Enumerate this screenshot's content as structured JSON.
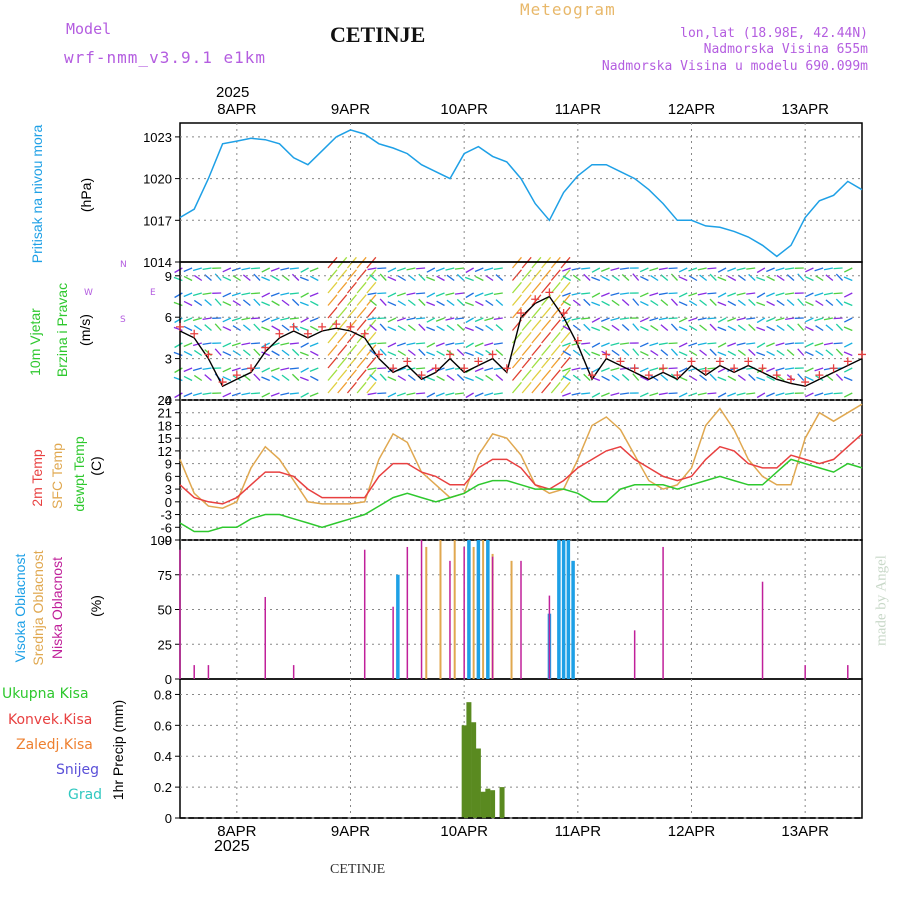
{
  "header": {
    "model_label": "Model",
    "model_name": "wrf-nmm_v3.9.1 e1km",
    "station": "CETINJE",
    "meteogram": "Meteogram",
    "lonlat": "lon,lat (18.98E, 42.44N)",
    "elevation": "Nadmorska Visina 655m",
    "model_elevation": "Nadmorska Visina u modelu 690.099m",
    "footer_station": "CETINJE",
    "watermark": "made by Angel",
    "year": "2025"
  },
  "dates": [
    "8APR",
    "9APR",
    "10APR",
    "11APR",
    "12APR",
    "13APR"
  ],
  "compass": {
    "w": "W",
    "e": "E",
    "n": "N",
    "s": "S"
  },
  "panels": {
    "pressure": {
      "label": "Pritisak na nivou mora",
      "unit": "(hPa)",
      "yticks": [
        "1014",
        "1017",
        "1020",
        "1023"
      ]
    },
    "wind": {
      "label1": "10m Vjetar",
      "label2": "Brzina i Pravac",
      "unit": "(m/s)",
      "yticks": [
        "0",
        "3",
        "6",
        "9"
      ]
    },
    "temp": {
      "label1": "2m Temp",
      "label2": "SFC Temp",
      "label3": "dewpt Temp",
      "unit": "(C)",
      "yticks": [
        "-9",
        "-6",
        "-3",
        "0",
        "3",
        "6",
        "9",
        "12",
        "15",
        "18",
        "21",
        "24"
      ]
    },
    "cloud": {
      "label1": "Visoka Oblacnost",
      "label2": "Srednja Oblacnost",
      "label3": "Niska Oblacnost",
      "unit": "(%)",
      "yticks": [
        "0",
        "25",
        "50",
        "75",
        "100"
      ]
    },
    "precip": {
      "unit": "1hr Precip (mm)",
      "yticks": [
        "0",
        "0.2",
        "0.4",
        "0.6",
        "0.8"
      ],
      "legend": [
        "Ukupna Kisa",
        "Konvek.Kisa",
        "Zaledj.Kisa",
        "Snijeg",
        "Grad"
      ]
    }
  },
  "colors": {
    "pressure": "#1ea0e6",
    "t2m": "#e84040",
    "tsfc": "#e0a850",
    "dewpt": "#2ec82e",
    "high": "#1ea0e6",
    "mid": "#e0a850",
    "low": "#c0209a",
    "rain": "#5a8a20",
    "conv": "#a04040",
    "grid": "#888888"
  },
  "chart_data": {
    "type": "line",
    "title": "CETINJE",
    "x_start": "2025-04-07 12:00",
    "x_end": "2025-04-13 12:00",
    "pressure_hPa": [
      [
        0,
        1017.2
      ],
      [
        3,
        1017.8
      ],
      [
        6,
        1020
      ],
      [
        9,
        1022.5
      ],
      [
        12,
        1022.7
      ],
      [
        15,
        1022.9
      ],
      [
        18,
        1022.8
      ],
      [
        21,
        1022.5
      ],
      [
        24,
        1021.5
      ],
      [
        27,
        1021
      ],
      [
        30,
        1022
      ],
      [
        33,
        1023
      ],
      [
        36,
        1023.5
      ],
      [
        39,
        1023.2
      ],
      [
        42,
        1022.5
      ],
      [
        45,
        1022.2
      ],
      [
        48,
        1021.8
      ],
      [
        51,
        1021
      ],
      [
        54,
        1020.5
      ],
      [
        57,
        1020
      ],
      [
        60,
        1021.8
      ],
      [
        63,
        1022.3
      ],
      [
        66,
        1021.6
      ],
      [
        69,
        1021.2
      ],
      [
        72,
        1020
      ],
      [
        75,
        1018.2
      ],
      [
        78,
        1017
      ],
      [
        81,
        1019
      ],
      [
        84,
        1020.2
      ],
      [
        87,
        1021
      ],
      [
        90,
        1021
      ],
      [
        93,
        1020.5
      ],
      [
        96,
        1020
      ],
      [
        99,
        1019.2
      ],
      [
        102,
        1018.2
      ],
      [
        105,
        1017
      ],
      [
        108,
        1017
      ],
      [
        111,
        1016.6
      ],
      [
        114,
        1016.5
      ],
      [
        117,
        1016.2
      ],
      [
        120,
        1015.8
      ],
      [
        123,
        1015.2
      ],
      [
        126,
        1014.4
      ],
      [
        129,
        1015.2
      ],
      [
        132,
        1017.2
      ],
      [
        135,
        1018.4
      ],
      [
        138,
        1018.8
      ],
      [
        141,
        1019.8
      ],
      [
        144,
        1019.2
      ]
    ],
    "wind_speed_ms": [
      [
        0,
        5
      ],
      [
        3,
        4.5
      ],
      [
        6,
        3
      ],
      [
        9,
        1
      ],
      [
        12,
        1.5
      ],
      [
        15,
        2
      ],
      [
        18,
        3.5
      ],
      [
        21,
        4.5
      ],
      [
        24,
        5
      ],
      [
        27,
        4.5
      ],
      [
        30,
        5
      ],
      [
        33,
        5.2
      ],
      [
        36,
        5
      ],
      [
        39,
        4.5
      ],
      [
        42,
        3
      ],
      [
        45,
        2
      ],
      [
        48,
        2.5
      ],
      [
        51,
        1.5
      ],
      [
        54,
        2
      ],
      [
        57,
        3
      ],
      [
        60,
        2
      ],
      [
        63,
        2.5
      ],
      [
        66,
        3
      ],
      [
        69,
        2
      ],
      [
        72,
        6
      ],
      [
        75,
        7
      ],
      [
        78,
        7.5
      ],
      [
        81,
        6
      ],
      [
        84,
        4
      ],
      [
        87,
        1.5
      ],
      [
        90,
        3
      ],
      [
        93,
        2.5
      ],
      [
        96,
        2
      ],
      [
        99,
        1.5
      ],
      [
        102,
        2
      ],
      [
        105,
        1.5
      ],
      [
        108,
        2.5
      ],
      [
        111,
        1.8
      ],
      [
        114,
        2.5
      ],
      [
        117,
        2
      ],
      [
        120,
        2.5
      ],
      [
        123,
        2
      ],
      [
        126,
        1.5
      ],
      [
        129,
        1.2
      ],
      [
        132,
        1
      ],
      [
        135,
        1.5
      ],
      [
        138,
        2
      ],
      [
        141,
        2.5
      ],
      [
        144,
        3
      ]
    ],
    "t2m_C": [
      [
        0,
        4
      ],
      [
        3,
        1
      ],
      [
        6,
        0
      ],
      [
        9,
        -0.5
      ],
      [
        12,
        1
      ],
      [
        15,
        4
      ],
      [
        18,
        7
      ],
      [
        21,
        7
      ],
      [
        24,
        6
      ],
      [
        27,
        3
      ],
      [
        30,
        1
      ],
      [
        33,
        1
      ],
      [
        36,
        1
      ],
      [
        39,
        1
      ],
      [
        42,
        6
      ],
      [
        45,
        9
      ],
      [
        48,
        9
      ],
      [
        51,
        7
      ],
      [
        54,
        6
      ],
      [
        57,
        4
      ],
      [
        60,
        4
      ],
      [
        63,
        8
      ],
      [
        66,
        10
      ],
      [
        69,
        10
      ],
      [
        72,
        8
      ],
      [
        75,
        4
      ],
      [
        78,
        3
      ],
      [
        81,
        5
      ],
      [
        84,
        8
      ],
      [
        87,
        10
      ],
      [
        90,
        12
      ],
      [
        93,
        13
      ],
      [
        96,
        10
      ],
      [
        99,
        8
      ],
      [
        102,
        6
      ],
      [
        105,
        5
      ],
      [
        108,
        6
      ],
      [
        111,
        10
      ],
      [
        114,
        13
      ],
      [
        117,
        12
      ],
      [
        120,
        9
      ],
      [
        123,
        8
      ],
      [
        126,
        8
      ],
      [
        129,
        11
      ],
      [
        132,
        10
      ],
      [
        135,
        9
      ],
      [
        138,
        10
      ],
      [
        141,
        13
      ],
      [
        144,
        16
      ]
    ],
    "tsfc_C": [
      [
        0,
        10
      ],
      [
        3,
        2
      ],
      [
        6,
        -1
      ],
      [
        9,
        -1.5
      ],
      [
        12,
        0
      ],
      [
        15,
        8
      ],
      [
        18,
        13
      ],
      [
        21,
        10
      ],
      [
        24,
        5
      ],
      [
        27,
        0
      ],
      [
        30,
        -0.5
      ],
      [
        33,
        -0.5
      ],
      [
        36,
        -0.5
      ],
      [
        39,
        0
      ],
      [
        42,
        10
      ],
      [
        45,
        16
      ],
      [
        48,
        14
      ],
      [
        51,
        7
      ],
      [
        54,
        4
      ],
      [
        57,
        1
      ],
      [
        60,
        2
      ],
      [
        63,
        11
      ],
      [
        66,
        16
      ],
      [
        69,
        15
      ],
      [
        72,
        11
      ],
      [
        75,
        4
      ],
      [
        78,
        2
      ],
      [
        81,
        3
      ],
      [
        84,
        10
      ],
      [
        87,
        18
      ],
      [
        90,
        20
      ],
      [
        93,
        17
      ],
      [
        96,
        11
      ],
      [
        99,
        5
      ],
      [
        102,
        3
      ],
      [
        105,
        4
      ],
      [
        108,
        8
      ],
      [
        111,
        18
      ],
      [
        114,
        22
      ],
      [
        117,
        17
      ],
      [
        120,
        10
      ],
      [
        123,
        6
      ],
      [
        126,
        4
      ],
      [
        129,
        4
      ],
      [
        132,
        15
      ],
      [
        135,
        21
      ],
      [
        138,
        19
      ],
      [
        141,
        21
      ],
      [
        144,
        23
      ]
    ],
    "dewpt_C": [
      [
        0,
        -5
      ],
      [
        3,
        -7
      ],
      [
        6,
        -7
      ],
      [
        9,
        -6
      ],
      [
        12,
        -6
      ],
      [
        15,
        -4
      ],
      [
        18,
        -3
      ],
      [
        21,
        -3
      ],
      [
        24,
        -4
      ],
      [
        27,
        -5
      ],
      [
        30,
        -6
      ],
      [
        33,
        -5
      ],
      [
        36,
        -4
      ],
      [
        39,
        -3
      ],
      [
        42,
        -1
      ],
      [
        45,
        1
      ],
      [
        48,
        2
      ],
      [
        51,
        1
      ],
      [
        54,
        0
      ],
      [
        57,
        1
      ],
      [
        60,
        2
      ],
      [
        63,
        4
      ],
      [
        66,
        5
      ],
      [
        69,
        5
      ],
      [
        72,
        4
      ],
      [
        75,
        3
      ],
      [
        78,
        3
      ],
      [
        81,
        3
      ],
      [
        84,
        2
      ],
      [
        87,
        0
      ],
      [
        90,
        0
      ],
      [
        93,
        3
      ],
      [
        96,
        4
      ],
      [
        99,
        4
      ],
      [
        102,
        4
      ],
      [
        105,
        3
      ],
      [
        108,
        4
      ],
      [
        111,
        5
      ],
      [
        114,
        6
      ],
      [
        117,
        5
      ],
      [
        120,
        4
      ],
      [
        123,
        4
      ],
      [
        126,
        7
      ],
      [
        129,
        10
      ],
      [
        132,
        9
      ],
      [
        135,
        8
      ],
      [
        138,
        7
      ],
      [
        141,
        9
      ],
      [
        144,
        8
      ]
    ],
    "cloud_low_pct": [
      [
        0,
        93
      ],
      [
        3,
        10
      ],
      [
        6,
        10
      ],
      [
        18,
        59
      ],
      [
        24,
        10
      ],
      [
        39,
        93
      ],
      [
        45,
        52
      ],
      [
        48,
        95
      ],
      [
        51,
        100
      ],
      [
        57,
        85
      ],
      [
        60,
        95
      ],
      [
        66,
        88
      ],
      [
        72,
        85
      ],
      [
        78,
        60
      ],
      [
        96,
        35
      ],
      [
        102,
        95
      ],
      [
        123,
        70
      ],
      [
        132,
        10
      ],
      [
        141,
        10
      ]
    ],
    "cloud_mid_pct": [
      [
        52,
        95
      ],
      [
        55,
        100
      ],
      [
        58,
        100
      ],
      [
        62,
        95
      ],
      [
        64,
        100
      ],
      [
        66,
        90
      ],
      [
        70,
        85
      ]
    ],
    "cloud_high_pct": [
      [
        46,
        75
      ],
      [
        61,
        100
      ],
      [
        63,
        100
      ],
      [
        65,
        100
      ],
      [
        78,
        47
      ],
      [
        80,
        100
      ],
      [
        81,
        100
      ],
      [
        82,
        100
      ],
      [
        83,
        85
      ]
    ],
    "precip_1h_mm": [
      [
        60,
        0.6
      ],
      [
        61,
        0.75
      ],
      [
        62,
        0.62
      ],
      [
        63,
        0.45
      ],
      [
        64,
        0.17
      ],
      [
        65,
        0.19
      ],
      [
        66,
        0.18
      ],
      [
        68,
        0.2
      ]
    ],
    "ylim_pressure": [
      1014,
      1024
    ],
    "ylim_wind": [
      0,
      10
    ],
    "ylim_temp": [
      -9,
      24
    ],
    "ylim_cloud": [
      0,
      100
    ],
    "ylim_precip": [
      0,
      0.9
    ]
  }
}
